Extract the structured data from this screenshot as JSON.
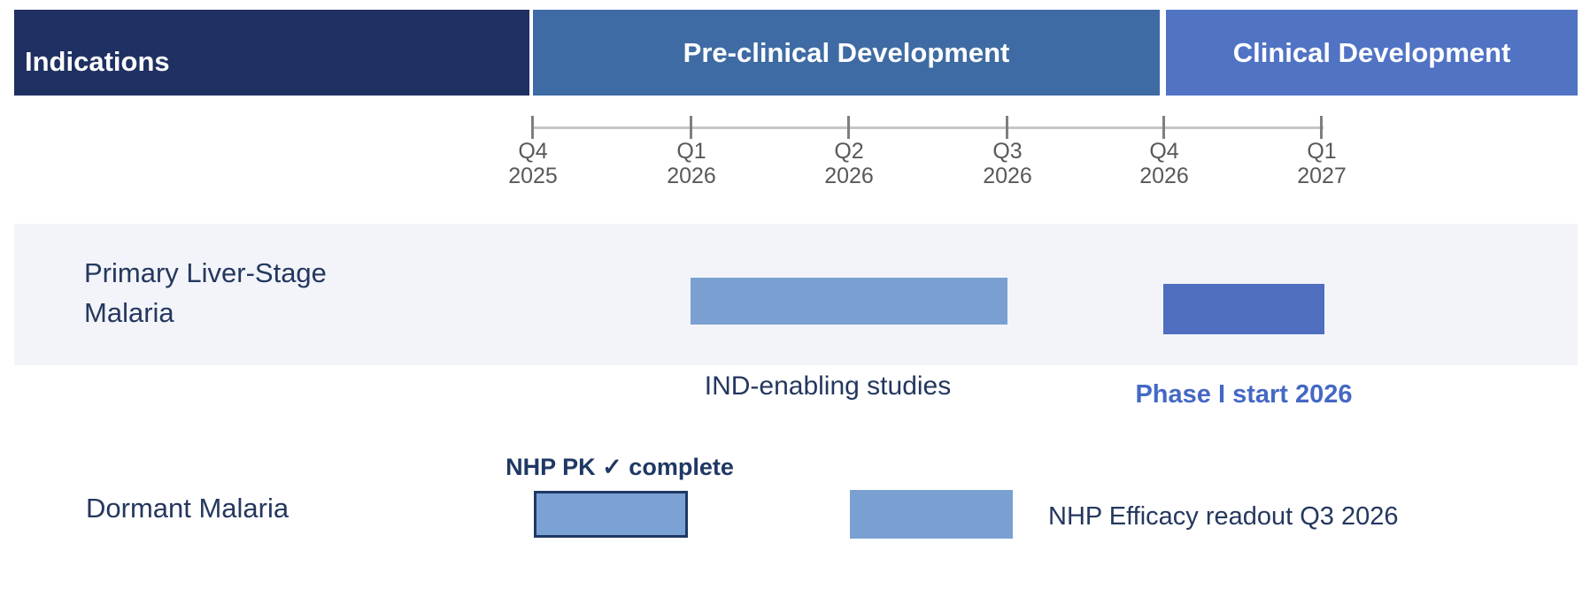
{
  "header": {
    "indications_label": "Indications",
    "indications_color": "#1F3062",
    "phases": [
      {
        "label": "Pre-clinical Development",
        "color": "#3F6BA4"
      },
      {
        "label": "Clinical Development",
        "color": "#5173C4"
      }
    ]
  },
  "timeline": {
    "ticks": [
      {
        "quarter": "Q4",
        "year": "2025"
      },
      {
        "quarter": "Q1",
        "year": "2026"
      },
      {
        "quarter": "Q2",
        "year": "2026"
      },
      {
        "quarter": "Q3",
        "year": "2026"
      },
      {
        "quarter": "Q4",
        "year": "2026"
      },
      {
        "quarter": "Q1",
        "year": "2027"
      }
    ]
  },
  "rows": [
    {
      "label": "Primary Liver-Stage Malaria",
      "row_background": "#F2F4F9",
      "bars": [
        {
          "label": "IND-enabling studies",
          "start": "Q1 2026",
          "end": "Q3 2026",
          "color": "#7AA0D2"
        },
        {
          "label": "Phase I start 2026",
          "start": "Q4 2026",
          "end": "Q1 2027",
          "color": "#4F6EBF"
        }
      ]
    },
    {
      "label": "Dormant Malaria",
      "row_background": "#FFFFFF",
      "bars": [
        {
          "label": "NHP PK ✓ complete",
          "start": "Q4 2025",
          "end": "Q1 2026",
          "color": "#7BA2D4",
          "border_color": "#1F3864"
        },
        {
          "label": "NHP Efficacy readout Q3 2026",
          "start": "Q2 2026",
          "end": "Q3 2026",
          "color": "#7AA0D2"
        }
      ]
    }
  ],
  "chart_data": {
    "type": "bar",
    "subtype": "gantt-roadmap",
    "x_ticks": [
      "Q4 2025",
      "Q1 2026",
      "Q2 2026",
      "Q3 2026",
      "Q4 2026",
      "Q1 2027"
    ],
    "header_phases": [
      {
        "label": "Pre-clinical Development",
        "span_start": "Q4 2025",
        "span_end": "Q4 2026"
      },
      {
        "label": "Clinical Development",
        "span_start": "Q4 2026",
        "span_end": "Q1 2027+"
      }
    ],
    "series": [
      {
        "name": "Primary Liver-Stage Malaria",
        "bars": [
          {
            "label": "IND-enabling studies",
            "start": "Q1 2026",
            "end": "Q3 2026",
            "style": "light-blue"
          },
          {
            "label": "Phase I start 2026",
            "start": "Q4 2026",
            "end": "Q1 2027",
            "style": "medium-blue"
          }
        ]
      },
      {
        "name": "Dormant Malaria",
        "bars": [
          {
            "label": "NHP PK ✓ complete",
            "start": "Q4 2025",
            "end": "Q1 2026",
            "style": "light-blue-outlined",
            "status": "complete"
          },
          {
            "label": "NHP Efficacy readout Q3 2026",
            "start": "Q2 2026",
            "end": "Q3 2026",
            "style": "light-blue"
          }
        ]
      }
    ],
    "legend_position": "none",
    "grid": false
  }
}
